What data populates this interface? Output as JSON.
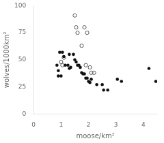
{
  "chart_data": {
    "type": "scatter",
    "xlabel": "moose/km²",
    "ylabel": "wolves/1000km²",
    "series": [
      {
        "color": "#111111",
        "marker": "circle",
        "values": [
          [
            0.9,
            40
          ],
          [
            0.95,
            57
          ],
          [
            1.05,
            57
          ],
          [
            1.1,
            53
          ],
          [
            0.85,
            45
          ],
          [
            1.15,
            45
          ],
          [
            1.3,
            55
          ],
          [
            0.9,
            35
          ],
          [
            1.0,
            35
          ],
          [
            1.25,
            45
          ],
          [
            1.3,
            42
          ],
          [
            1.35,
            43
          ],
          [
            1.45,
            55
          ],
          [
            1.5,
            50
          ],
          [
            1.55,
            48
          ],
          [
            1.6,
            45
          ],
          [
            1.65,
            45
          ],
          [
            1.7,
            43
          ],
          [
            1.75,
            38
          ],
          [
            1.8,
            37
          ],
          [
            1.85,
            37
          ],
          [
            1.9,
            33
          ],
          [
            1.95,
            33
          ],
          [
            2.0,
            30
          ],
          [
            2.05,
            29
          ],
          [
            2.1,
            32
          ],
          [
            2.3,
            27
          ],
          [
            2.5,
            27
          ],
          [
            2.55,
            22
          ],
          [
            2.7,
            22
          ],
          [
            3.05,
            32
          ],
          [
            3.2,
            30
          ],
          [
            4.2,
            42
          ],
          [
            4.45,
            30
          ]
        ]
      },
      {
        "color": "#555555",
        "marker": "open_circle",
        "values": [
          [
            1.5,
            91
          ],
          [
            1.55,
            80
          ],
          [
            1.85,
            80
          ],
          [
            1.6,
            75
          ],
          [
            1.95,
            75
          ],
          [
            1.75,
            63
          ],
          [
            1.1,
            52
          ],
          [
            1.0,
            48
          ],
          [
            1.05,
            45
          ],
          [
            1.9,
            45
          ],
          [
            2.05,
            43
          ],
          [
            2.1,
            38
          ],
          [
            2.2,
            38
          ]
        ]
      }
    ],
    "xlim": [
      0,
      4.5
    ],
    "ylim": [
      0,
      100
    ],
    "xticks": [
      0,
      1,
      2,
      3,
      4
    ],
    "yticks": [
      0,
      25,
      50,
      75,
      100
    ],
    "grid": false
  }
}
